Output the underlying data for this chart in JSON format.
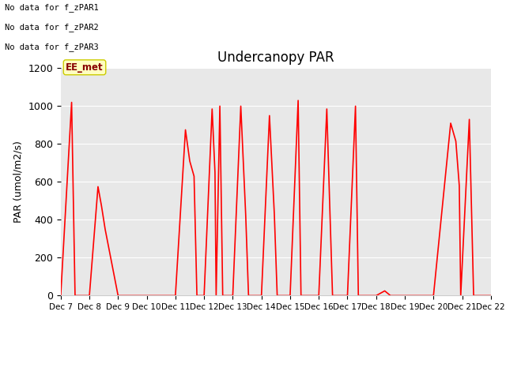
{
  "title": "Undercanopy PAR",
  "ylabel": "PAR (umol/m2/s)",
  "ylim": [
    0,
    1200
  ],
  "yticks": [
    0,
    200,
    400,
    600,
    800,
    1000,
    1200
  ],
  "plot_bg_color": "#e8e8e8",
  "fig_bg_color": "#ffffff",
  "line_color": "#ff0000",
  "no_data_texts": [
    "No data for f_zPAR1",
    "No data for f_zPAR2",
    "No data for f_zPAR3"
  ],
  "ee_met_label": "EE_met",
  "x_labels": [
    "Dec 7",
    "Dec 8",
    "Dec 9",
    "Dec 10",
    "Dec 11",
    "Dec 12",
    "Dec 13",
    "Dec 14",
    "Dec 15",
    "Dec 16",
    "Dec 17",
    "Dec 18",
    "Dec 19",
    "Dec 20",
    "Dec 21",
    "Dec 22"
  ],
  "x_values": [
    7,
    8,
    9,
    10,
    11,
    12,
    13,
    14,
    15,
    16,
    17,
    18,
    19,
    20,
    21,
    22
  ],
  "par_data": [
    [
      7.0,
      0
    ],
    [
      7.38,
      1020
    ],
    [
      7.5,
      0
    ],
    [
      8.0,
      0
    ],
    [
      8.3,
      575
    ],
    [
      8.42,
      475
    ],
    [
      8.55,
      350
    ],
    [
      9.0,
      0
    ],
    [
      10.0,
      0
    ],
    [
      11.0,
      0
    ],
    [
      11.35,
      875
    ],
    [
      11.5,
      710
    ],
    [
      11.65,
      630
    ],
    [
      11.75,
      0
    ],
    [
      12.0,
      0
    ],
    [
      12.28,
      985
    ],
    [
      12.38,
      650
    ],
    [
      12.42,
      0
    ],
    [
      12.55,
      1000
    ],
    [
      12.65,
      0
    ],
    [
      13.0,
      0
    ],
    [
      13.28,
      1000
    ],
    [
      13.45,
      430
    ],
    [
      13.55,
      0
    ],
    [
      14.0,
      0
    ],
    [
      14.28,
      950
    ],
    [
      14.45,
      430
    ],
    [
      14.55,
      0
    ],
    [
      15.0,
      0
    ],
    [
      15.28,
      1030
    ],
    [
      15.38,
      0
    ],
    [
      16.0,
      0
    ],
    [
      16.28,
      985
    ],
    [
      16.38,
      485
    ],
    [
      16.48,
      0
    ],
    [
      17.0,
      0
    ],
    [
      17.28,
      1000
    ],
    [
      17.38,
      0
    ],
    [
      18.0,
      0
    ],
    [
      18.3,
      25
    ],
    [
      18.5,
      0
    ],
    [
      19.0,
      0
    ],
    [
      20.0,
      0
    ],
    [
      20.6,
      910
    ],
    [
      20.78,
      815
    ],
    [
      20.9,
      580
    ],
    [
      20.95,
      0
    ],
    [
      21.25,
      930
    ],
    [
      21.4,
      0
    ],
    [
      22.0,
      0
    ]
  ]
}
